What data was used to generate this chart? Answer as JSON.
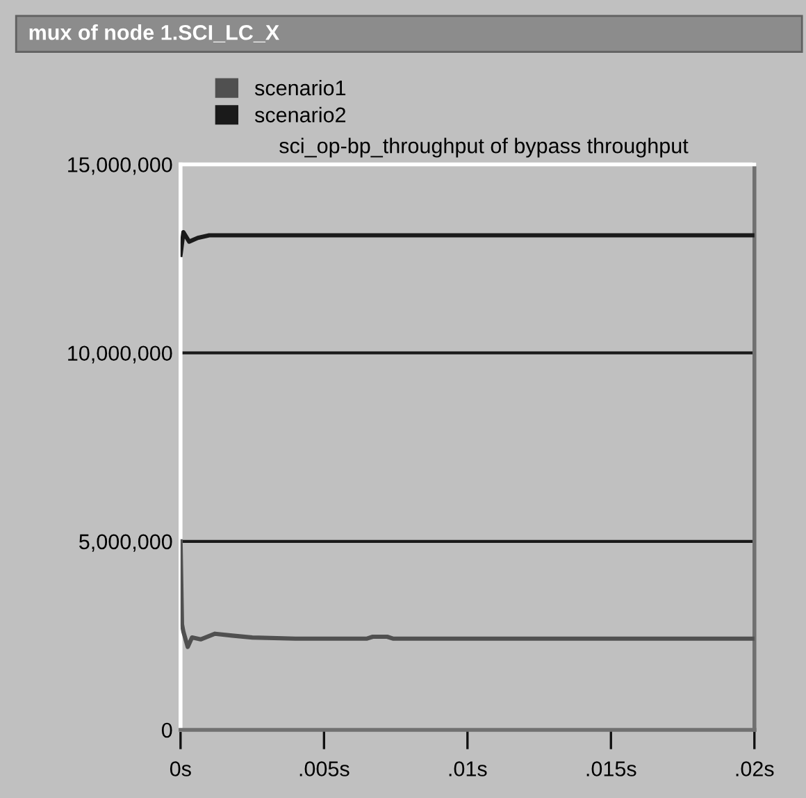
{
  "chart_data": {
    "type": "line",
    "title": "mux of node 1.SCI_LC_X",
    "subtitle": "sci_op-bp_throughput of bypass throughput",
    "series": [
      {
        "name": "scenario1",
        "color": "#505050",
        "x": [
          0,
          5e-05,
          0.0001,
          0.00025,
          0.0004,
          0.0007,
          0.0012,
          0.0018,
          0.0025,
          0.004,
          0.0065,
          0.0067,
          0.0072,
          0.0074,
          0.02
        ],
        "values": [
          5000000,
          2800000,
          2600000,
          2200000,
          2450000,
          2400000,
          2550000,
          2500000,
          2450000,
          2420000,
          2420000,
          2470000,
          2470000,
          2420000,
          2420000
        ]
      },
      {
        "name": "scenario2",
        "color": "#1a1a1a",
        "x": [
          0,
          0.0001,
          0.0003,
          0.0006,
          0.001,
          0.02
        ],
        "values": [
          12600000,
          13200000,
          12950000,
          13050000,
          13120000,
          13120000
        ]
      }
    ],
    "xlim": [
      0,
      0.02
    ],
    "xticks": [
      {
        "value": 0,
        "label": "0s"
      },
      {
        "value": 0.005,
        "label": ".005s"
      },
      {
        "value": 0.01,
        "label": ".01s"
      },
      {
        "value": 0.015,
        "label": ".015s"
      },
      {
        "value": 0.02,
        "label": ".02s"
      }
    ],
    "ylim": [
      0,
      15000000
    ],
    "yticks": [
      0,
      {
        "value": 5000000,
        "label": "5,000,000"
      },
      {
        "value": 10000000,
        "label": "10,000,000"
      },
      {
        "value": 15000000,
        "label": "15,000,000"
      }
    ],
    "grid": "y",
    "legend": "top left",
    "line_style": "solid",
    "marker": "none"
  }
}
